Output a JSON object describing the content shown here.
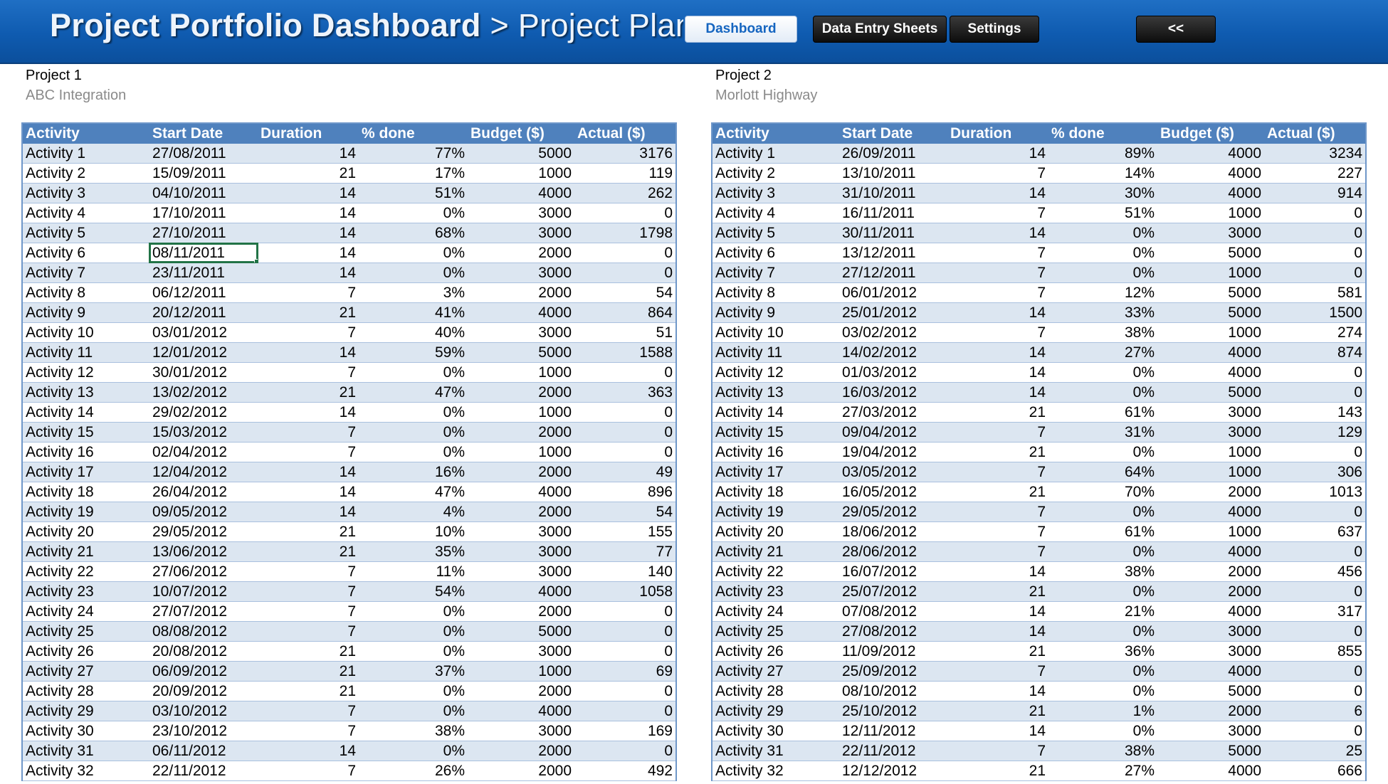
{
  "header": {
    "title_main": "Project Portfolio Dashboard",
    "title_sep": " > ",
    "title_current": "Project Plans",
    "buttons": {
      "dashboard": "Dashboard",
      "data_entry": "Data Entry Sheets",
      "settings": "Settings",
      "back": "<<"
    }
  },
  "columns": [
    "Activity",
    "Start Date",
    "Duration",
    "% done",
    "Budget ($)",
    "Actual ($)"
  ],
  "selected_cell": {
    "project": 1,
    "row": 5,
    "column": "start"
  },
  "projects": [
    {
      "name": "Project 1",
      "subtitle": "ABC Integration",
      "rows": [
        [
          "Activity 1",
          "27/08/2011",
          "14",
          "77%",
          "5000",
          "3176"
        ],
        [
          "Activity 2",
          "15/09/2011",
          "21",
          "17%",
          "1000",
          "119"
        ],
        [
          "Activity 3",
          "04/10/2011",
          "14",
          "51%",
          "4000",
          "262"
        ],
        [
          "Activity 4",
          "17/10/2011",
          "14",
          "0%",
          "3000",
          "0"
        ],
        [
          "Activity 5",
          "27/10/2011",
          "14",
          "68%",
          "3000",
          "1798"
        ],
        [
          "Activity 6",
          "08/11/2011",
          "14",
          "0%",
          "2000",
          "0"
        ],
        [
          "Activity 7",
          "23/11/2011",
          "14",
          "0%",
          "3000",
          "0"
        ],
        [
          "Activity 8",
          "06/12/2011",
          "7",
          "3%",
          "2000",
          "54"
        ],
        [
          "Activity 9",
          "20/12/2011",
          "21",
          "41%",
          "4000",
          "864"
        ],
        [
          "Activity 10",
          "03/01/2012",
          "7",
          "40%",
          "3000",
          "51"
        ],
        [
          "Activity 11",
          "12/01/2012",
          "14",
          "59%",
          "5000",
          "1588"
        ],
        [
          "Activity 12",
          "30/01/2012",
          "7",
          "0%",
          "1000",
          "0"
        ],
        [
          "Activity 13",
          "13/02/2012",
          "21",
          "47%",
          "2000",
          "363"
        ],
        [
          "Activity 14",
          "29/02/2012",
          "14",
          "0%",
          "1000",
          "0"
        ],
        [
          "Activity 15",
          "15/03/2012",
          "7",
          "0%",
          "2000",
          "0"
        ],
        [
          "Activity 16",
          "02/04/2012",
          "7",
          "0%",
          "1000",
          "0"
        ],
        [
          "Activity 17",
          "12/04/2012",
          "14",
          "16%",
          "2000",
          "49"
        ],
        [
          "Activity 18",
          "26/04/2012",
          "14",
          "47%",
          "4000",
          "896"
        ],
        [
          "Activity 19",
          "09/05/2012",
          "14",
          "4%",
          "2000",
          "54"
        ],
        [
          "Activity 20",
          "29/05/2012",
          "21",
          "10%",
          "3000",
          "155"
        ],
        [
          "Activity 21",
          "13/06/2012",
          "21",
          "35%",
          "3000",
          "77"
        ],
        [
          "Activity 22",
          "27/06/2012",
          "7",
          "11%",
          "3000",
          "140"
        ],
        [
          "Activity 23",
          "10/07/2012",
          "7",
          "54%",
          "4000",
          "1058"
        ],
        [
          "Activity 24",
          "27/07/2012",
          "7",
          "0%",
          "2000",
          "0"
        ],
        [
          "Activity 25",
          "08/08/2012",
          "7",
          "0%",
          "5000",
          "0"
        ],
        [
          "Activity 26",
          "20/08/2012",
          "21",
          "0%",
          "3000",
          "0"
        ],
        [
          "Activity 27",
          "06/09/2012",
          "21",
          "37%",
          "1000",
          "69"
        ],
        [
          "Activity 28",
          "20/09/2012",
          "21",
          "0%",
          "2000",
          "0"
        ],
        [
          "Activity 29",
          "03/10/2012",
          "7",
          "0%",
          "4000",
          "0"
        ],
        [
          "Activity 30",
          "23/10/2012",
          "7",
          "38%",
          "3000",
          "169"
        ],
        [
          "Activity 31",
          "06/11/2012",
          "14",
          "0%",
          "2000",
          "0"
        ],
        [
          "Activity 32",
          "22/11/2012",
          "7",
          "26%",
          "2000",
          "492"
        ]
      ]
    },
    {
      "name": "Project 2",
      "subtitle": "Morlott Highway",
      "rows": [
        [
          "Activity 1",
          "26/09/2011",
          "14",
          "89%",
          "4000",
          "3234"
        ],
        [
          "Activity 2",
          "13/10/2011",
          "7",
          "14%",
          "4000",
          "227"
        ],
        [
          "Activity 3",
          "31/10/2011",
          "14",
          "30%",
          "4000",
          "914"
        ],
        [
          "Activity 4",
          "16/11/2011",
          "7",
          "51%",
          "1000",
          "0"
        ],
        [
          "Activity 5",
          "30/11/2011",
          "14",
          "0%",
          "3000",
          "0"
        ],
        [
          "Activity 6",
          "13/12/2011",
          "7",
          "0%",
          "5000",
          "0"
        ],
        [
          "Activity 7",
          "27/12/2011",
          "7",
          "0%",
          "1000",
          "0"
        ],
        [
          "Activity 8",
          "06/01/2012",
          "7",
          "12%",
          "5000",
          "581"
        ],
        [
          "Activity 9",
          "25/01/2012",
          "14",
          "33%",
          "5000",
          "1500"
        ],
        [
          "Activity 10",
          "03/02/2012",
          "7",
          "38%",
          "1000",
          "274"
        ],
        [
          "Activity 11",
          "14/02/2012",
          "14",
          "27%",
          "4000",
          "874"
        ],
        [
          "Activity 12",
          "01/03/2012",
          "14",
          "0%",
          "4000",
          "0"
        ],
        [
          "Activity 13",
          "16/03/2012",
          "14",
          "0%",
          "5000",
          "0"
        ],
        [
          "Activity 14",
          "27/03/2012",
          "21",
          "61%",
          "3000",
          "143"
        ],
        [
          "Activity 15",
          "09/04/2012",
          "7",
          "31%",
          "3000",
          "129"
        ],
        [
          "Activity 16",
          "19/04/2012",
          "21",
          "0%",
          "1000",
          "0"
        ],
        [
          "Activity 17",
          "03/05/2012",
          "7",
          "64%",
          "1000",
          "306"
        ],
        [
          "Activity 18",
          "16/05/2012",
          "21",
          "70%",
          "2000",
          "1013"
        ],
        [
          "Activity 19",
          "29/05/2012",
          "7",
          "0%",
          "4000",
          "0"
        ],
        [
          "Activity 20",
          "18/06/2012",
          "7",
          "61%",
          "1000",
          "637"
        ],
        [
          "Activity 21",
          "28/06/2012",
          "7",
          "0%",
          "4000",
          "0"
        ],
        [
          "Activity 22",
          "16/07/2012",
          "14",
          "38%",
          "2000",
          "456"
        ],
        [
          "Activity 23",
          "25/07/2012",
          "21",
          "0%",
          "2000",
          "0"
        ],
        [
          "Activity 24",
          "07/08/2012",
          "14",
          "21%",
          "4000",
          "317"
        ],
        [
          "Activity 25",
          "27/08/2012",
          "14",
          "0%",
          "3000",
          "0"
        ],
        [
          "Activity 26",
          "11/09/2012",
          "21",
          "36%",
          "3000",
          "855"
        ],
        [
          "Activity 27",
          "25/09/2012",
          "7",
          "0%",
          "4000",
          "0"
        ],
        [
          "Activity 28",
          "08/10/2012",
          "14",
          "0%",
          "5000",
          "0"
        ],
        [
          "Activity 29",
          "25/10/2012",
          "21",
          "1%",
          "2000",
          "6"
        ],
        [
          "Activity 30",
          "12/11/2012",
          "14",
          "0%",
          "3000",
          "0"
        ],
        [
          "Activity 31",
          "22/11/2012",
          "7",
          "38%",
          "5000",
          "25"
        ],
        [
          "Activity 32",
          "12/12/2012",
          "21",
          "27%",
          "4000",
          "666"
        ]
      ]
    }
  ]
}
